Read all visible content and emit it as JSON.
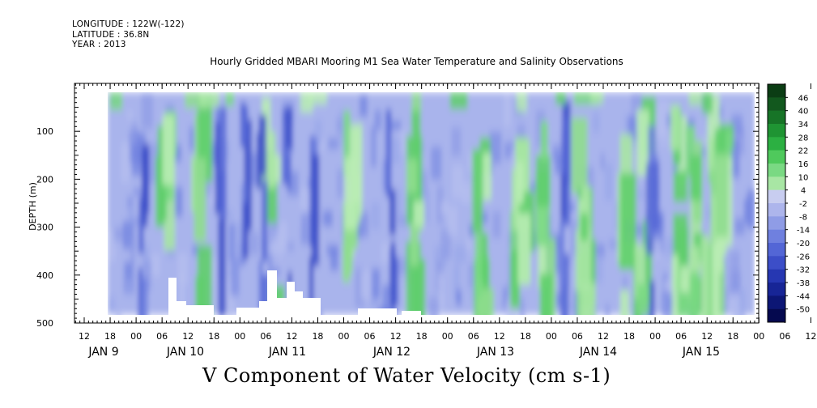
{
  "header": {
    "longitude": "LONGITUDE : 122W(-122)",
    "latitude": "LATITUDE : 36.8N",
    "year": "YEAR : 2013"
  },
  "chart_data": {
    "type": "heatmap",
    "title": "Hourly Gridded MBARI Mooring M1 Sea Water Temperature and Salinity Observations",
    "variable_label": "V Component of Water Velocity (cm s-1)",
    "ylabel": "DEPTH (m)",
    "ylim": [
      0,
      500
    ],
    "y_inverted": true,
    "y_ticks": [
      100,
      200,
      300,
      400,
      500
    ],
    "x_hour_tick_labels": [
      "12",
      "18",
      "00",
      "06",
      "12",
      "18",
      "00",
      "06",
      "12",
      "18",
      "00",
      "06",
      "12",
      "18",
      "00",
      "06",
      "12",
      "18",
      "00",
      "06",
      "12",
      "18",
      "00",
      "06",
      "12",
      "18",
      "00",
      "06",
      "12",
      "18"
    ],
    "x_day_labels": [
      "JAN  9",
      "JAN 10",
      "JAN 11",
      "JAN 12",
      "JAN 13",
      "JAN 14",
      "JAN 15"
    ],
    "colorbar": {
      "labels": [
        "46",
        "40",
        "34",
        "28",
        "22",
        "16",
        "10",
        "4",
        "-2",
        "-8",
        "-14",
        "-20",
        "-26",
        "-32",
        "-38",
        "-44",
        "-50"
      ],
      "colors": [
        "#0b3d14",
        "#12581e",
        "#177427",
        "#1f9433",
        "#2cb042",
        "#4fc95c",
        "#7ad983",
        "#a8e6a4",
        "#c8cdf0",
        "#adb5ec",
        "#8f9ce6",
        "#6f80df",
        "#5366d6",
        "#3c4ec8",
        "#2637b2",
        "#172596",
        "#0c1675",
        "#05094f"
      ]
    },
    "grid": false,
    "colorbar_position": "right",
    "pattern": {
      "green_days": [
        9.3,
        10.1,
        10.4,
        11.1,
        11.9,
        12.5,
        13.15,
        13.5,
        13.75,
        14.1,
        14.5,
        14.7,
        15.05,
        15.2,
        15.35,
        15.45
      ],
      "blue_days": [
        9.9,
        10.65,
        10.9,
        11.05,
        11.3,
        11.55,
        12.3,
        13.95,
        14.8
      ]
    }
  }
}
